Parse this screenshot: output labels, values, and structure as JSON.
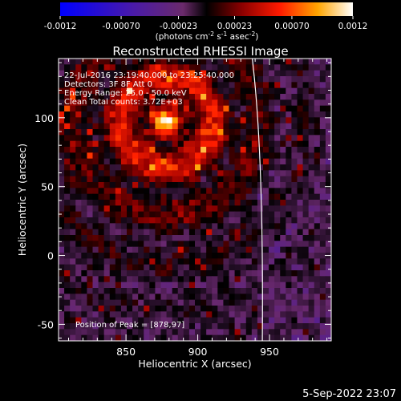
{
  "chart_data": {
    "type": "heatmap",
    "title": "Reconstructed RHESSI Image",
    "xlabel": "Heliocentric X (arcsec)",
    "ylabel": "Heliocentric Y (arcsec)",
    "xlim": [
      803,
      993
    ],
    "ylim": [
      -62,
      143
    ],
    "x_ticks": [
      850,
      900,
      950
    ],
    "y_ticks": [
      -50,
      0,
      50,
      100
    ],
    "colorbar": {
      "ticks": [
        "-0.0012",
        "-0.00070",
        "-0.00023",
        "0.00023",
        "0.00070",
        "0.0012"
      ],
      "range": [
        -0.0012,
        0.0012
      ],
      "unit_prefix": "(photons cm",
      "unit_sup1": "-2",
      "unit_mid": " s",
      "unit_sup2": "-1",
      "unit_mid2": " asec",
      "unit_sup3": "-2",
      "unit_suffix": ")"
    },
    "annotations": [
      "22-Jul-2016 23:19:40.000 to 23:25:40.000",
      "Detectors: 3F 8F  Att 0",
      "Energy Range: 25.0 - 50.0 keV",
      "Clean     Total counts: 3.72E+03"
    ],
    "peak_label": "Position of Peak = [878,97]",
    "peak": [
      878,
      97
    ],
    "limb_x_at_top": 940,
    "limb_x_at_bottom": 945,
    "colors": {
      "background": "#000000",
      "text": "#ffffff"
    }
  },
  "footer": {
    "timestamp": "5-Sep-2022 23:07"
  }
}
